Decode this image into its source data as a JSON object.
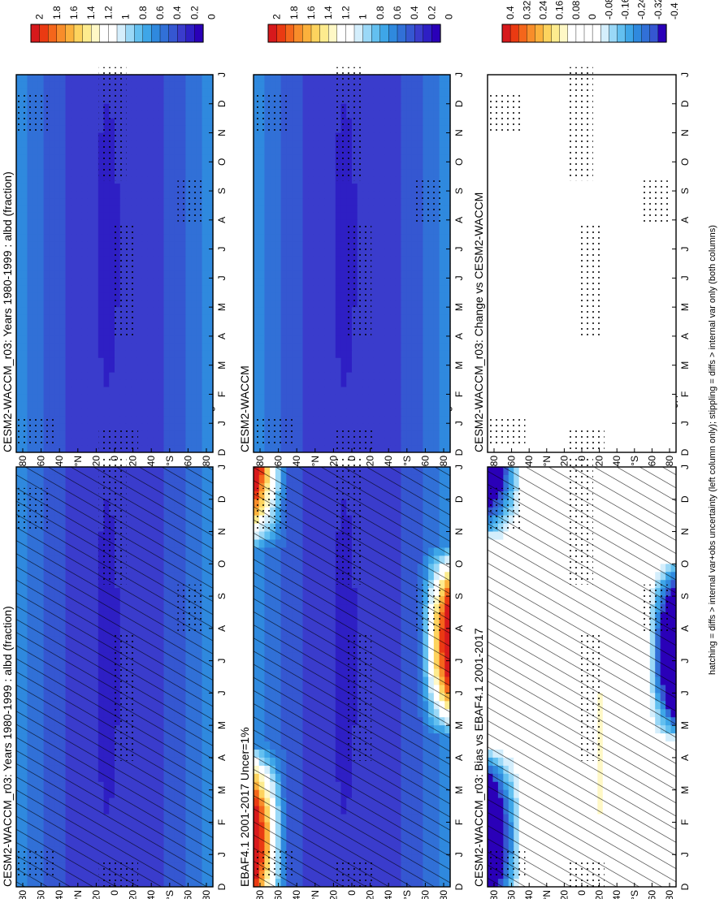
{
  "figure": {
    "footer": "hatching = diffs > internal var+obs uncertainty (left column only); stippling = diffs > internal var only (both columns)",
    "panels": [
      {
        "id": "p1",
        "title": "CESM2-WACCM_r03: Years 1980-1999 : albd (fraction)",
        "scale": "abs",
        "hatched": true,
        "stippled": true
      },
      {
        "id": "p2",
        "title": "CESM2-WACCM_r03: Years 1980-1999 : albd (fraction)",
        "scale": "abs",
        "hatched": false,
        "stippled": true
      },
      {
        "id": "p3",
        "title": "EBAF4.1 2001-2017 Uncer=1%",
        "scale": "abs",
        "hatched": true,
        "stippled": true
      },
      {
        "id": "p4",
        "title": "CESM2-WACCM",
        "scale": "abs",
        "hatched": false,
        "stippled": true
      },
      {
        "id": "p5",
        "title": "CESM2-WACCM_r03: Bias vs EBAF4.1 2001-2017",
        "scale": "diff",
        "hatched": true,
        "stippled": true
      },
      {
        "id": "p6",
        "title": "CESM2-WACCM_r03: Change vs CESM2-WACCM",
        "scale": "diff",
        "hatched": false,
        "stippled": true
      }
    ],
    "month_labels": [
      "D",
      "J",
      "F",
      "M",
      "A",
      "M",
      "J",
      "J",
      "A",
      "S",
      "O",
      "N",
      "D",
      "J"
    ],
    "lat_labels": [
      "80",
      "60",
      "40",
      "°N",
      "20",
      "0",
      "20",
      "40",
      "°S",
      "60",
      "80"
    ],
    "colorbars": {
      "abs": {
        "labels": [
          "2",
          "1.8",
          "1.6",
          "1.4",
          "1.2",
          "1",
          "0.8",
          "0.6",
          "0.4",
          "0.2",
          "0"
        ]
      },
      "diff": {
        "labels": [
          "0.4",
          "0.32",
          "0.24",
          "0.16",
          "0.08",
          "0",
          "-0.08",
          "-0.16",
          "-0.24",
          "-0.32",
          "-0.4"
        ]
      }
    },
    "colors": {
      "abs_scale": [
        "#d7191c",
        "#ea3a12",
        "#f4661b",
        "#f88d2a",
        "#fbb13c",
        "#fdd35e",
        "#fdeb8e",
        "#fff8c6",
        "#ffffff",
        "#ffffff",
        "#d4eefc",
        "#9ad8f7",
        "#63c0f0",
        "#3ea6e8",
        "#2f89de",
        "#3170d7",
        "#3557d1",
        "#3a3ccc",
        "#2e1fc4",
        "#2a00b8"
      ],
      "diff_scale": [
        "#d7191c",
        "#ea3a12",
        "#f4661b",
        "#f88d2a",
        "#fbb13c",
        "#fdd35e",
        "#fdeb8e",
        "#fff8c6",
        "#ffffff",
        "#ffffff",
        "#ffffff",
        "#ffffff",
        "#d4eefc",
        "#9ad8f7",
        "#63c0f0",
        "#3ea6e8",
        "#2f89de",
        "#3170d7",
        "#3557d1",
        "#2a00b8"
      ]
    }
  },
  "chart_data": [
    {
      "type": "heatmap",
      "panel": "p1",
      "title": "CESM2-WACCM_r03: Years 1980-1999 : albd (fraction)",
      "x": "latitude (80°N to 80°S)",
      "y": "month (D..J)",
      "cmin": 0,
      "cmax": 2,
      "typical_values": {
        "high_latitudes": 0.6,
        "mid_latitudes": 0.35,
        "tropics": 0.25,
        "deep_tropics_min": 0.12
      }
    },
    {
      "type": "heatmap",
      "panel": "p2",
      "title": "CESM2-WACCM_r03: Years 1980-1999 : albd (fraction)",
      "cmin": 0,
      "cmax": 2,
      "typical_values": {
        "high_latitudes": 0.6,
        "mid_latitudes": 0.35,
        "tropics": 0.25
      }
    },
    {
      "type": "heatmap",
      "panel": "p3",
      "title": "EBAF4.1 2001-2017 Uncer=1%",
      "cmin": 0,
      "cmax": 2,
      "typical_values": {
        "polar_summer_north": 2.0,
        "polar_summer_south": 2.0,
        "tropics": 0.25
      }
    },
    {
      "type": "heatmap",
      "panel": "p4",
      "title": "CESM2-WACCM",
      "cmin": 0,
      "cmax": 2,
      "typical_values": {
        "high_latitudes": 0.6,
        "tropics": 0.25
      }
    },
    {
      "type": "heatmap",
      "panel": "p5",
      "title": "CESM2-WACCM_r03: Bias vs EBAF4.1 2001-2017",
      "cmin": -0.4,
      "cmax": 0.4,
      "typical_values": {
        "north_polar_winter": -0.4,
        "south_polar_winter": -0.4,
        "tropics": 0.0,
        "subtropical_bands": 0.08
      }
    },
    {
      "type": "heatmap",
      "panel": "p6",
      "title": "CESM2-WACCM_r03: Change vs CESM2-WACCM",
      "cmin": -0.4,
      "cmax": 0.4,
      "typical_values": {
        "everywhere": 0.0
      }
    }
  ]
}
